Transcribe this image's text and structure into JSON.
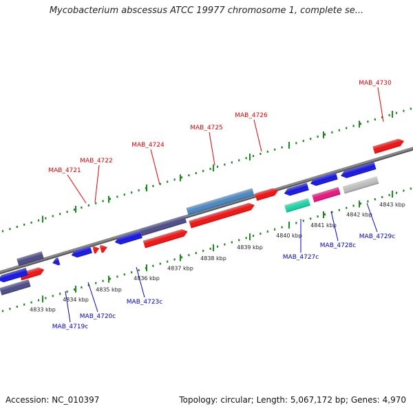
{
  "title": "Mycobacterium abscessus ATCC 19977 chromosome 1, complete se...",
  "footer": {
    "accession": "Accession: NC_010397",
    "info": "Topology: circular; Length: 5,067,172 bp; Genes: 4,970"
  },
  "colors": {
    "backbone": "#888888",
    "tick": "#1a8a1a",
    "forward_label": "#e00000",
    "reverse_label": "#0000cc",
    "red": "#ee1111",
    "blue": "#1515dd",
    "navy": "#4b4a86",
    "steel": "#4a86c0",
    "teal": "#1cd3a5",
    "magenta": "#e5157f",
    "gray": "#bdbdbd"
  },
  "ticks": [
    "4833 kbp",
    "4834 kbp",
    "4835 kbp",
    "4836 kbp",
    "4837 kbp",
    "4838 kbp",
    "4839 kbp",
    "4840 kbp",
    "4841 kbp",
    "4842 kbp",
    "4843 kbp"
  ],
  "forward_labels": [
    "MAB_4721",
    "MAB_4722",
    "MAB_4724",
    "MAB_4725",
    "MAB_4726",
    "MAB_4730"
  ],
  "reverse_labels": [
    "MAB_4719c",
    "MAB_4720c",
    "MAB_4723c",
    "MAB_4727c",
    "MAB_4728c",
    "MAB_4729c"
  ]
}
